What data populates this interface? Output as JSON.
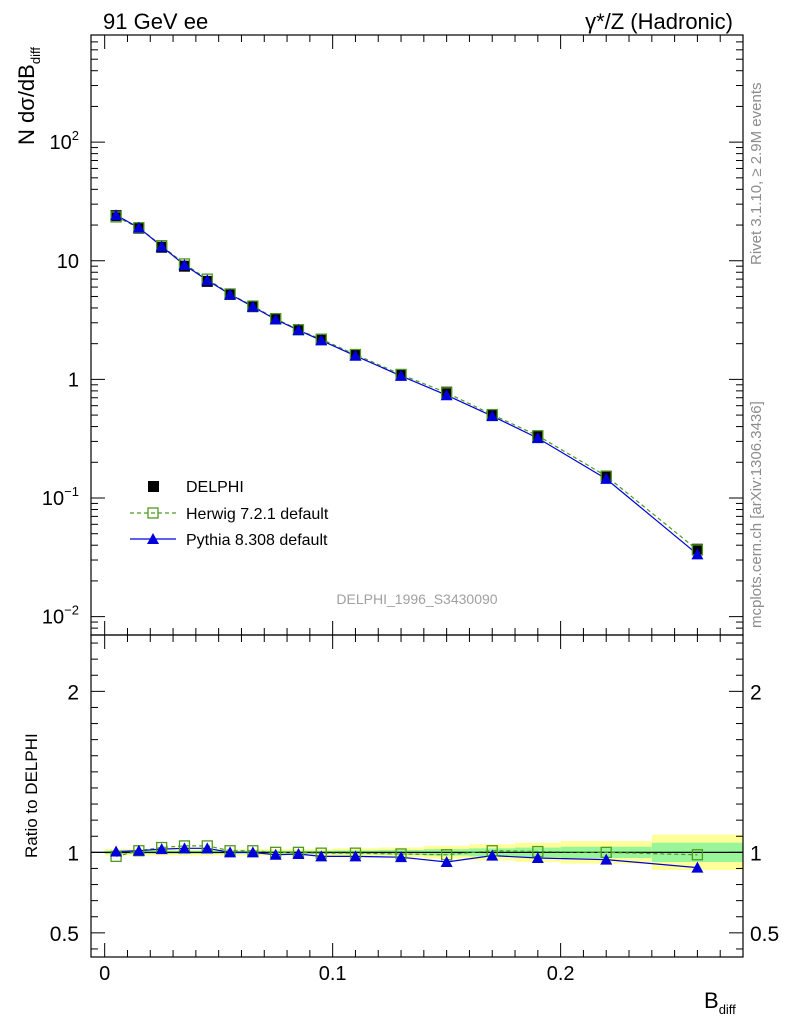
{
  "header": {
    "left": "91 GeV ee",
    "right": "γ*/Z (Hadronic)"
  },
  "side_text": {
    "upper": "Rivet 3.1.10, ≥ 2.9M events",
    "lower": "mcplots.cern.ch [arXiv:1306.3436]"
  },
  "analysis_id": "DELPHI_1996_S3430090",
  "ylabel_main": {
    "base": "N dσ/dB",
    "sub": "diff"
  },
  "ylabel_ratio": "Ratio to DELPHI",
  "xlabel": {
    "base": "B",
    "sub": "diff"
  },
  "x_ticks": [
    {
      "value": 0,
      "label": "0"
    },
    {
      "value": 0.1,
      "label": "0.1"
    },
    {
      "value": 0.2,
      "label": "0.2"
    }
  ],
  "y_ticks_main": [
    {
      "value": 0.01,
      "base": "10",
      "exp": "−2"
    },
    {
      "value": 0.1,
      "base": "10",
      "exp": "−1"
    },
    {
      "value": 1,
      "base": "1",
      "exp": ""
    },
    {
      "value": 10,
      "base": "10",
      "exp": ""
    },
    {
      "value": 100,
      "base": "10",
      "exp": "2"
    }
  ],
  "y_ticks_ratio": [
    {
      "value": 0.5,
      "label": "0.5"
    },
    {
      "value": 1,
      "label": "1"
    },
    {
      "value": 2,
      "label": "2"
    }
  ],
  "legend": [
    {
      "key": "data",
      "label": "DELPHI"
    },
    {
      "key": "herwig",
      "label": "Herwig 7.2.1 default"
    },
    {
      "key": "pythia",
      "label": "Pythia 8.308 default"
    }
  ],
  "colors": {
    "data": "#000000",
    "herwig": "#4d9a1f",
    "pythia": "#0000dd",
    "band_inner": "#99f599",
    "band_outer": "#ffff99",
    "side_text": "#8c8c8c"
  },
  "chart_data": [
    {
      "type": "scatter",
      "panel": "main",
      "yscale": "log",
      "xlim": [
        -0.006,
        0.28
      ],
      "ylim": [
        0.007,
        800
      ],
      "x": [
        0.005,
        0.015,
        0.025,
        0.035,
        0.045,
        0.055,
        0.065,
        0.075,
        0.085,
        0.095,
        0.11,
        0.13,
        0.15,
        0.17,
        0.19,
        0.22,
        0.26
      ],
      "series": [
        {
          "name": "DELPHI",
          "values": [
            24.0,
            18.8,
            13.0,
            9.0,
            6.7,
            5.2,
            4.1,
            3.25,
            2.62,
            2.18,
            1.62,
            1.1,
            0.78,
            0.5,
            0.33,
            0.152,
            0.037
          ]
        },
        {
          "name": "Herwig 7.2.1 default",
          "values": [
            23.4,
            19.0,
            13.4,
            9.4,
            7.0,
            5.25,
            4.15,
            3.25,
            2.62,
            2.18,
            1.62,
            1.1,
            0.77,
            0.505,
            0.335,
            0.153,
            0.0365
          ]
        },
        {
          "name": "Pythia 8.308 default",
          "values": [
            24.2,
            19.0,
            13.2,
            9.2,
            6.85,
            5.2,
            4.1,
            3.2,
            2.6,
            2.13,
            1.58,
            1.07,
            0.735,
            0.49,
            0.32,
            0.145,
            0.0335
          ]
        }
      ]
    },
    {
      "type": "line",
      "panel": "ratio",
      "ylim": [
        0.35,
        2.35
      ],
      "x": [
        0.005,
        0.015,
        0.025,
        0.035,
        0.045,
        0.055,
        0.065,
        0.075,
        0.085,
        0.095,
        0.11,
        0.13,
        0.15,
        0.17,
        0.19,
        0.22,
        0.26
      ],
      "bin_edges": [
        0,
        0.01,
        0.02,
        0.03,
        0.04,
        0.05,
        0.06,
        0.07,
        0.08,
        0.09,
        0.1,
        0.12,
        0.14,
        0.16,
        0.18,
        0.2,
        0.24,
        0.28
      ],
      "band_inner": [
        0.01,
        0.01,
        0.01,
        0.01,
        0.01,
        0.01,
        0.01,
        0.01,
        0.01,
        0.01,
        0.012,
        0.015,
        0.02,
        0.025,
        0.03,
        0.035,
        0.06
      ],
      "band_outer": [
        0.02,
        0.02,
        0.02,
        0.02,
        0.02,
        0.02,
        0.02,
        0.02,
        0.02,
        0.02,
        0.025,
        0.03,
        0.04,
        0.05,
        0.06,
        0.07,
        0.11
      ],
      "series": [
        {
          "name": "Herwig 7.2.1 default",
          "values": [
            0.975,
            1.01,
            1.03,
            1.04,
            1.04,
            1.01,
            1.01,
            1.0,
            1.0,
            0.995,
            0.995,
            0.99,
            0.985,
            1.01,
            1.005,
            1.0,
            0.985
          ]
        },
        {
          "name": "Pythia 8.308 default",
          "values": [
            1.005,
            1.01,
            1.02,
            1.025,
            1.025,
            1.0,
            1.0,
            0.985,
            0.99,
            0.975,
            0.975,
            0.97,
            0.94,
            0.98,
            0.965,
            0.955,
            0.905
          ]
        }
      ]
    }
  ]
}
